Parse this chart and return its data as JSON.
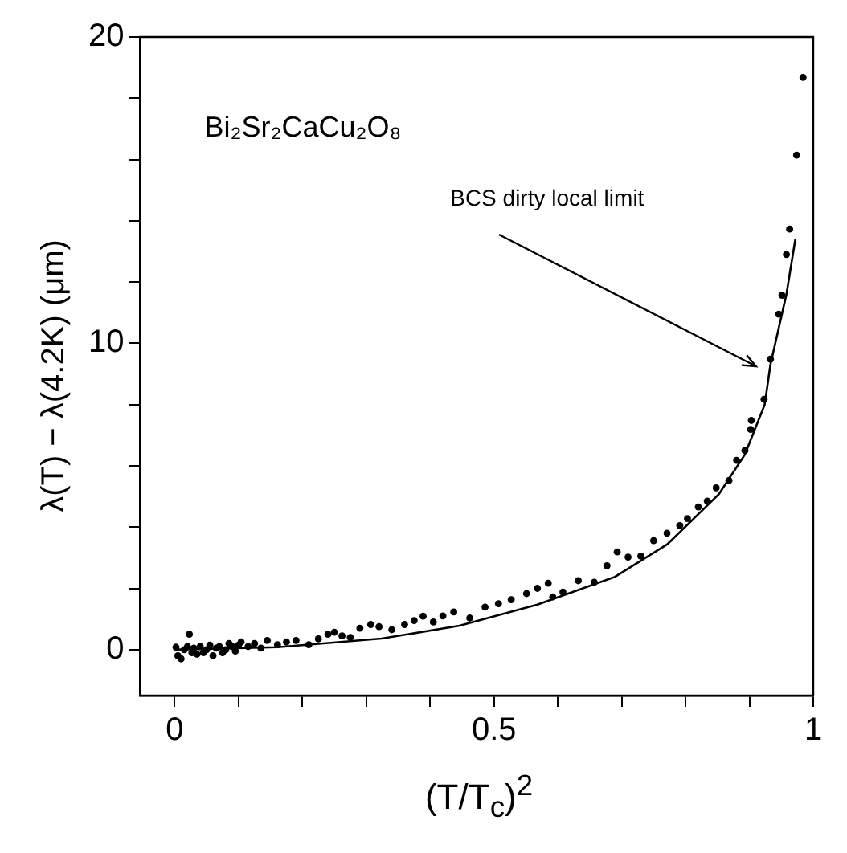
{
  "chart_data": {
    "type": "scatter",
    "xlabel": "(T/T$_{c}$)$^{2}$",
    "ylabel": "λ(T) − λ(4.2K)   (μm)",
    "annotations": [
      "Bi₂Sr₂CaCu₂O₈",
      "BCS dirty local limit"
    ],
    "xlim": [
      -0.054,
      1.0
    ],
    "ylim": [
      -1.5,
      20
    ],
    "xticks": [
      0,
      {
        "value": 0.1,
        "label": null
      },
      {
        "value": 0.2,
        "label": null
      },
      {
        "value": 0.3,
        "label": null
      },
      {
        "value": 0.4,
        "label": null
      },
      0.5,
      {
        "value": 0.6,
        "label": null
      },
      {
        "value": 0.7,
        "label": null
      },
      {
        "value": 0.8,
        "label": null
      },
      {
        "value": 0.9,
        "label": null
      },
      1
    ],
    "yticks": [
      0,
      {
        "value": 2,
        "label": null
      },
      {
        "value": 4,
        "label": null
      },
      {
        "value": 6,
        "label": null
      },
      {
        "value": 8,
        "label": null
      },
      10,
      {
        "value": 12,
        "label": null
      },
      {
        "value": 14,
        "label": null
      },
      {
        "value": 16,
        "label": null
      },
      {
        "value": 18,
        "label": null
      },
      20
    ],
    "grid": false,
    "legend": false,
    "series": [
      {
        "color": "#000000",
        "marker": "circle",
        "x": [
          0.002,
          0.005,
          0.01,
          0.015,
          0.02,
          0.023,
          0.027,
          0.03,
          0.035,
          0.04,
          0.045,
          0.05,
          0.055,
          0.06,
          0.065,
          0.07,
          0.075,
          0.08,
          0.085,
          0.09,
          0.095,
          0.1,
          0.104,
          0.115,
          0.125,
          0.135,
          0.145,
          0.161,
          0.175,
          0.19,
          0.21,
          0.225,
          0.24,
          0.25,
          0.262,
          0.275,
          0.29,
          0.307,
          0.32,
          0.34,
          0.36,
          0.375,
          0.389,
          0.405,
          0.42,
          0.437,
          0.462,
          0.486,
          0.507,
          0.527,
          0.551,
          0.568,
          0.585,
          0.592,
          0.608,
          0.632,
          0.657,
          0.677,
          0.693,
          0.71,
          0.73,
          0.75,
          0.771,
          0.791,
          0.803,
          0.82,
          0.834,
          0.848,
          0.868,
          0.88,
          0.893,
          0.902,
          0.903,
          0.923,
          0.933,
          0.946,
          0.951,
          0.958,
          0.963,
          0.974,
          0.984
        ],
        "values": [
          0.08,
          -0.2,
          -0.3,
          0.0,
          0.1,
          0.5,
          -0.1,
          0.05,
          -0.15,
          0.1,
          -0.1,
          0.0,
          0.15,
          -0.2,
          0.05,
          0.1,
          -0.1,
          0.0,
          0.2,
          0.1,
          -0.05,
          0.15,
          0.25,
          0.1,
          0.2,
          0.05,
          0.3,
          0.16,
          0.25,
          0.3,
          0.16,
          0.35,
          0.5,
          0.57,
          0.45,
          0.4,
          0.7,
          0.82,
          0.75,
          0.65,
          0.82,
          0.95,
          1.09,
          0.9,
          1.1,
          1.23,
          1.03,
          1.39,
          1.5,
          1.63,
          1.83,
          2.0,
          2.17,
          1.72,
          1.88,
          2.25,
          2.2,
          2.74,
          3.19,
          3.02,
          3.05,
          3.56,
          3.8,
          4.05,
          4.28,
          4.66,
          4.85,
          5.28,
          5.52,
          6.18,
          6.5,
          7.19,
          7.48,
          8.17,
          9.48,
          10.95,
          11.57,
          12.9,
          13.73,
          16.14,
          18.68
        ]
      },
      {
        "type": "line",
        "color": "#000000",
        "marker": "none",
        "line_style": "solid",
        "x": [
          0,
          0.161,
          0.324,
          0.446,
          0.568,
          0.689,
          0.771,
          0.852,
          0.893,
          0.924,
          0.933,
          0.958,
          0.972
        ],
        "values": [
          0,
          0.08,
          0.36,
          0.78,
          1.47,
          2.37,
          3.43,
          5.07,
          6.37,
          8.0,
          9.31,
          11.6,
          13.4
        ]
      }
    ]
  }
}
